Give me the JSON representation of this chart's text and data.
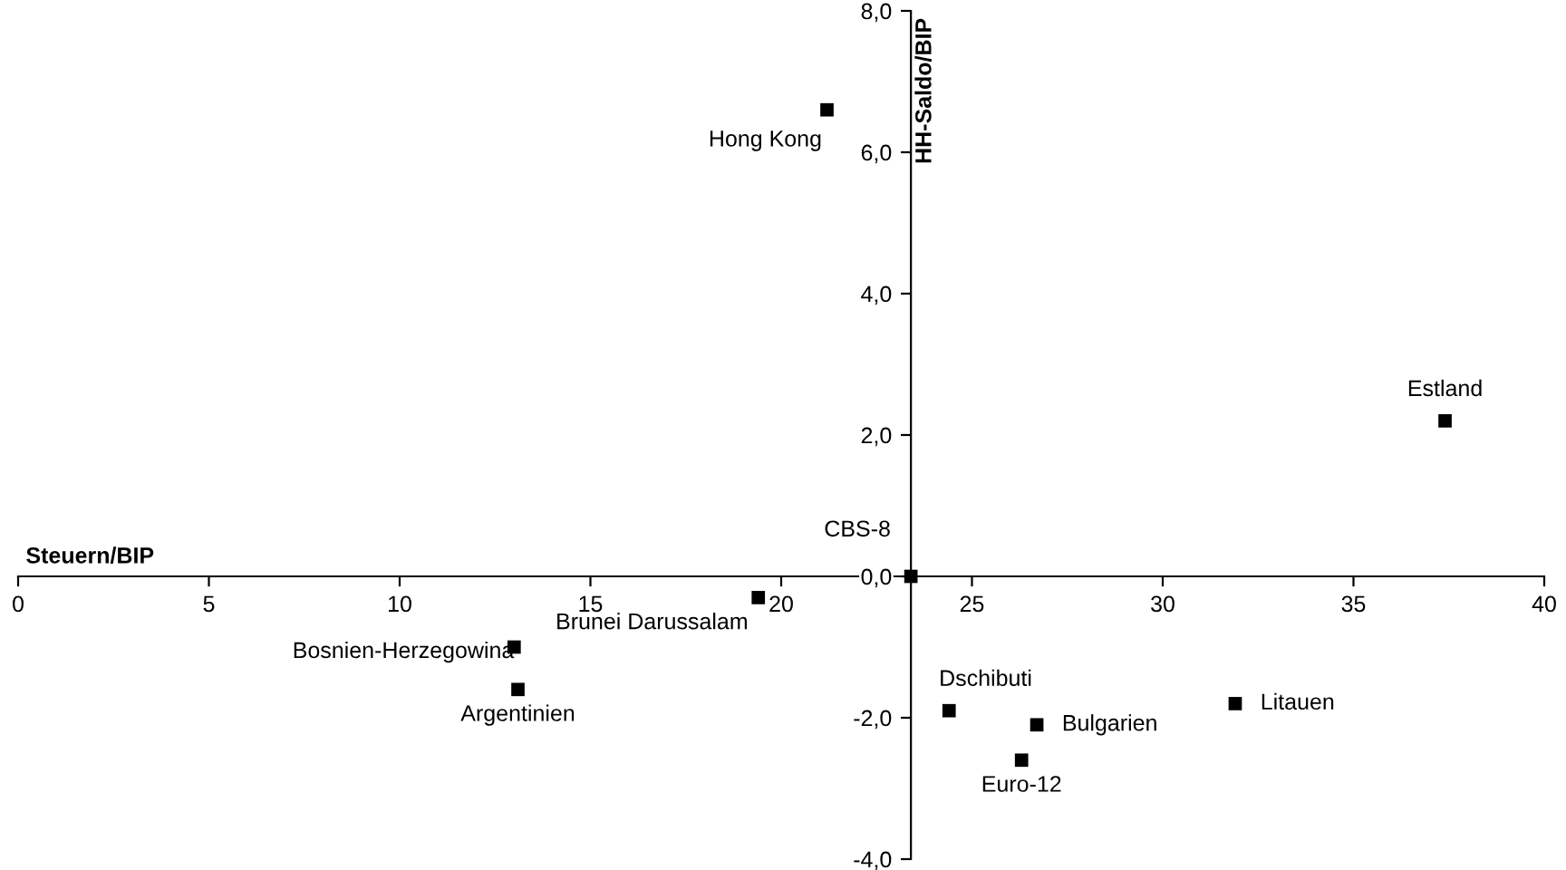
{
  "chart_data": {
    "type": "scatter",
    "xlabel": "Steuern/BIP",
    "ylabel": "HH-Saldo/BIP",
    "x": [
      21.2,
      37.4,
      23.4,
      19.4,
      13.0,
      13.1,
      24.4,
      26.7,
      26.3,
      31.9
    ],
    "values": [
      6.6,
      2.2,
      0.0,
      -0.3,
      -1.0,
      -1.6,
      -1.9,
      -2.1,
      -2.6,
      -1.8
    ],
    "color": "#000000",
    "marker": "square",
    "annotations": [
      {
        "text": "Hong Kong",
        "x": 21.2,
        "y": 6.6
      },
      {
        "text": "Estland",
        "x": 37.4,
        "y": 2.2
      },
      {
        "text": "CBS-8",
        "x": 23.4,
        "y": 0.0
      },
      {
        "text": "Brunei Darussalam",
        "x": 19.4,
        "y": -0.3
      },
      {
        "text": "Bosnien-Herzegowina",
        "x": 13.0,
        "y": -1.0
      },
      {
        "text": "Argentinien",
        "x": 13.1,
        "y": -1.6
      },
      {
        "text": "Dschibuti",
        "x": 24.4,
        "y": -1.9
      },
      {
        "text": "Bulgarien",
        "x": 26.7,
        "y": -2.1
      },
      {
        "text": "Euro-12",
        "x": 26.3,
        "y": -2.6
      },
      {
        "text": "Litauen",
        "x": 31.9,
        "y": -1.8
      }
    ],
    "xlim": [
      0,
      40
    ],
    "xticks": [
      0,
      5,
      10,
      15,
      20,
      25,
      30,
      35,
      40
    ],
    "ylim": [
      -4,
      8
    ],
    "yticks": [
      {
        "value": -4,
        "label": "-4,0"
      },
      {
        "value": -2,
        "label": "-2,0"
      },
      {
        "value": 0,
        "label": "0,0"
      },
      {
        "value": 2,
        "label": "2,0"
      },
      {
        "value": 4,
        "label": "4,0"
      },
      {
        "value": 6,
        "label": "6,0"
      },
      {
        "value": 8,
        "label": "8,0"
      }
    ],
    "grid": false,
    "legend": false
  }
}
